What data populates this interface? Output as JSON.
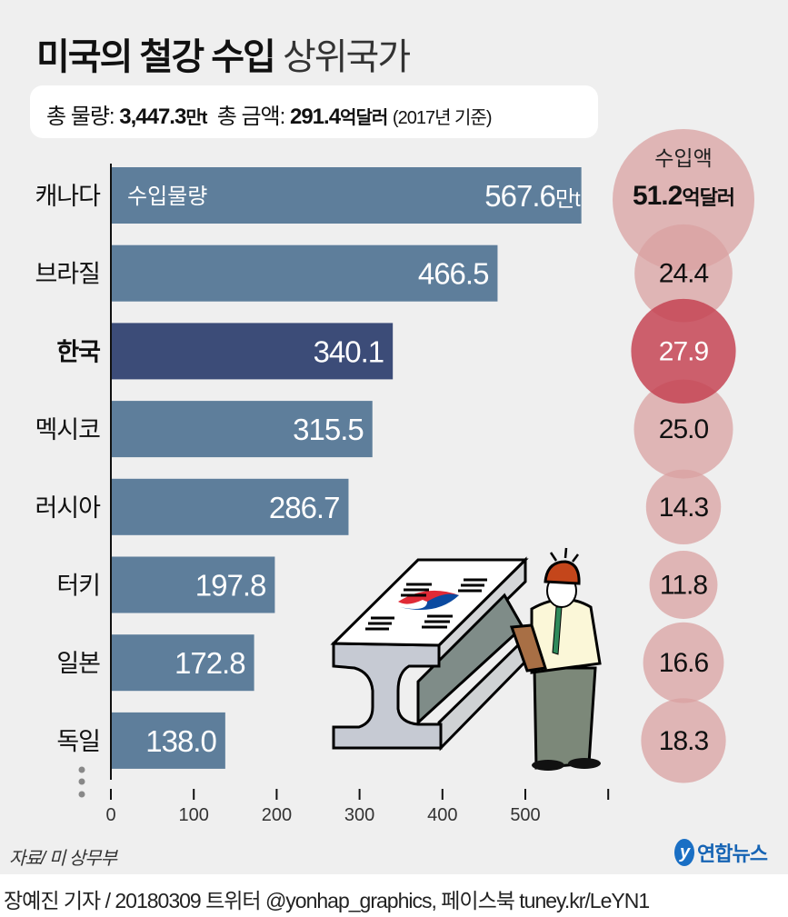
{
  "title": {
    "bold": "미국의 철강 수입",
    "light": "상위국가"
  },
  "summary": {
    "volume_label": "총 물량:",
    "volume_value": "3,447.3",
    "volume_unit": "만t",
    "amount_label": "총 금액:",
    "amount_value": "291.4",
    "amount_unit": "억달러",
    "note": "(2017년 기준)"
  },
  "chart_data": {
    "type": "bar",
    "title": "미국의 철강 수입 상위국가",
    "categories": [
      "캐나다",
      "브라질",
      "한국",
      "멕시코",
      "러시아",
      "터키",
      "일본",
      "독일"
    ],
    "highlight": "한국",
    "series": [
      {
        "name": "수입물량",
        "unit": "만t",
        "values": [
          567.6,
          466.5,
          340.1,
          315.5,
          286.7,
          197.8,
          172.8,
          138.0
        ]
      },
      {
        "name": "수입액",
        "unit": "억달러",
        "values": [
          51.2,
          24.4,
          27.9,
          25.0,
          14.3,
          11.8,
          16.6,
          18.3
        ]
      }
    ],
    "value_labels": [
      "567.6",
      "466.5",
      "340.1",
      "315.5",
      "286.7",
      "197.8",
      "172.8",
      "138.0"
    ],
    "amount_labels": [
      "51.2",
      "24.4",
      "27.9",
      "25.0",
      "14.3",
      "11.8",
      "16.6",
      "18.3"
    ],
    "xticks": [
      "0",
      "100",
      "200",
      "300",
      "400",
      "500",
      ""
    ],
    "xlim": [
      0,
      600
    ],
    "grid": false
  },
  "colors": {
    "bar": "#5e7e9b",
    "bar_highlight": "#3c4c78",
    "circle": "#d9a2a2",
    "circle_highlight": "#c4404f"
  },
  "source": "자료/ 미 상무부",
  "logo": {
    "mark": "y",
    "text": "연합뉴스"
  },
  "credit": "장예진 기자 / 20180309 트위터 @yonhap_graphics, 페이스북 tuney.kr/LeYN1"
}
